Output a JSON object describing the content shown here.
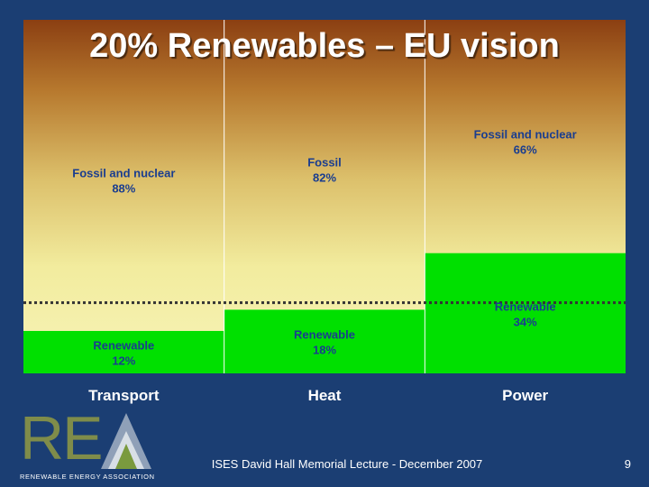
{
  "slide": {
    "title": "20% Renewables – EU vision",
    "footer": "ISES David Hall Memorial Lecture - December 2007",
    "page_number": "9",
    "logo": {
      "letters": "RE",
      "subtitle": "RENEWABLE ENERGY ASSOCIATION"
    }
  },
  "colors": {
    "renewable": "#00e000",
    "text": "#1a3d8f",
    "background": "#1b3e73",
    "target_line": "#333333"
  },
  "chart_data": {
    "type": "bar",
    "stacked": true,
    "title": "20% Renewables – EU vision",
    "categories": [
      "Transport",
      "Heat",
      "Power"
    ],
    "ylim": [
      0,
      100
    ],
    "target_line": 20,
    "series": [
      {
        "name": "Renewable",
        "values": [
          12,
          18,
          34
        ],
        "labels": [
          [
            "Renewable",
            "12%"
          ],
          [
            "Renewable",
            "18%"
          ],
          [
            "Renewable",
            "34%"
          ]
        ]
      },
      {
        "name": "Fossil",
        "values": [
          88,
          82,
          66
        ],
        "labels": [
          [
            "Fossil and nuclear",
            "88%"
          ],
          [
            "Fossil",
            "82%"
          ],
          [
            "Fossil and nuclear",
            "66%"
          ]
        ]
      }
    ]
  }
}
